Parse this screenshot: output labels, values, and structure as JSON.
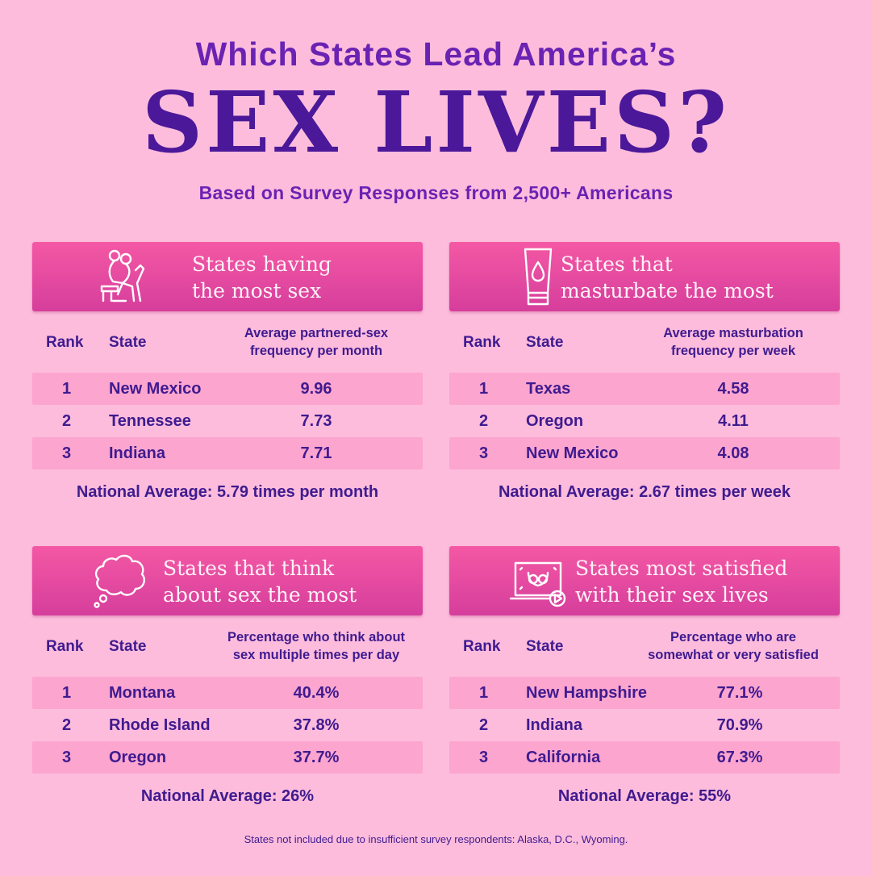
{
  "header": {
    "kicker": "Which States Lead America’s",
    "headline": "SEX LIVES?",
    "subline": "Based on Survey Responses from 2,500+ Americans"
  },
  "panels": [
    {
      "title": "States having\nthe most sex",
      "icon": "couple-chair-icon",
      "rank_header": "Rank",
      "state_header": "State",
      "metric_header": "Average partnered-sex\nfrequency per month",
      "rows": [
        {
          "rank": "1",
          "state": "New Mexico",
          "value": "9.96"
        },
        {
          "rank": "2",
          "state": "Tennessee",
          "value": "7.73"
        },
        {
          "rank": "3",
          "state": "Indiana",
          "value": "7.71"
        }
      ],
      "national_average": "National Average: 5.79 times per month"
    },
    {
      "title": "States that\nmasturbate the most",
      "icon": "lube-tube-icon",
      "rank_header": "Rank",
      "state_header": "State",
      "metric_header": "Average masturbation\nfrequency per week",
      "rows": [
        {
          "rank": "1",
          "state": "Texas",
          "value": "4.58"
        },
        {
          "rank": "2",
          "state": "Oregon",
          "value": "4.11"
        },
        {
          "rank": "3",
          "state": "New Mexico",
          "value": "4.08"
        }
      ],
      "national_average": "National Average: 2.67 times per week"
    },
    {
      "title": "States that think\nabout sex the most",
      "icon": "thought-bubble-icon",
      "rank_header": "Rank",
      "state_header": "State",
      "metric_header": "Percentage who think about\nsex multiple times per day",
      "rows": [
        {
          "rank": "1",
          "state": "Montana",
          "value": "40.4%"
        },
        {
          "rank": "2",
          "state": "Rhode Island",
          "value": "37.8%"
        },
        {
          "rank": "3",
          "state": "Oregon",
          "value": "37.7%"
        }
      ],
      "national_average": "National Average: 26%"
    },
    {
      "title": "States most satisfied\nwith their sex lives",
      "icon": "laptop-video-icon",
      "rank_header": "Rank",
      "state_header": "State",
      "metric_header": "Percentage who are\nsomewhat or very satisfied",
      "rows": [
        {
          "rank": "1",
          "state": "New Hampshire",
          "value": "77.1%"
        },
        {
          "rank": "2",
          "state": "Indiana",
          "value": "70.9%"
        },
        {
          "rank": "3",
          "state": "California",
          "value": "67.3%"
        }
      ],
      "national_average": "National Average: 55%"
    }
  ],
  "footnote": "States not included due to insufficient survey respondents: Alaska, D.C., Wyoming."
}
